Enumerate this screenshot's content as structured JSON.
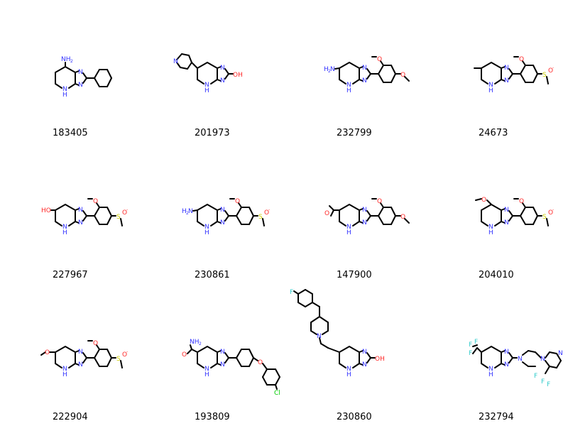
{
  "colors": {
    "bond": "#000000",
    "N": "#3333ff",
    "O": "#ff2a2a",
    "S": "#cccc00",
    "F": "#33cccc",
    "Cl": "#00cc00"
  },
  "compounds": [
    {
      "id": "183405",
      "icon": "molecule-structure",
      "atoms": {
        "nh2": "NH",
        "nh2_sub": "2",
        "n1": "N",
        "n2": "N",
        "nh": "N",
        "h": "H"
      }
    },
    {
      "id": "201973",
      "icon": "molecule-structure",
      "atoms": {
        "npy": "N",
        "n1": "N",
        "n2": "N",
        "nh": "N",
        "h": "H",
        "oh": "OH"
      }
    },
    {
      "id": "232799",
      "icon": "molecule-structure",
      "atoms": {
        "h2n": "H",
        "h2n_sub": "2",
        "h2n_n": "N",
        "n1": "N",
        "n2": "N",
        "nh": "N",
        "h": "H",
        "o1": "O",
        "o2": "O"
      }
    },
    {
      "id": "24673",
      "icon": "molecule-structure",
      "atoms": {
        "n1": "N",
        "n2": "N",
        "nh": "N",
        "h": "H",
        "o1": "O",
        "s": "S",
        "so": "O",
        "so_charge": "-"
      }
    },
    {
      "id": "227967",
      "icon": "molecule-structure",
      "atoms": {
        "ho": "HO",
        "n1": "N",
        "n2": "N",
        "nh": "N",
        "h": "H",
        "o1": "O",
        "s": "S",
        "so": "O",
        "so_charge": "-"
      }
    },
    {
      "id": "230861",
      "icon": "molecule-structure",
      "atoms": {
        "h2n": "H",
        "h2n_sub": "2",
        "h2n_n": "N",
        "n1": "N",
        "n2": "N",
        "nh": "N",
        "h": "H",
        "o1": "O",
        "s": "S",
        "so": "O",
        "so_charge": "-"
      }
    },
    {
      "id": "147900",
      "icon": "molecule-structure",
      "atoms": {
        "oket": "O",
        "n1": "N",
        "n2": "N",
        "nh": "N",
        "h": "H",
        "o1": "O",
        "o2": "O"
      }
    },
    {
      "id": "204010",
      "icon": "molecule-structure",
      "atoms": {
        "oome": "O",
        "n1": "N",
        "n2": "N",
        "nh": "N",
        "h": "H",
        "o1": "O",
        "s": "S",
        "so": "O",
        "so_charge": "-"
      }
    },
    {
      "id": "222904",
      "icon": "molecule-structure",
      "atoms": {
        "oome": "O",
        "n1": "N",
        "n2": "N",
        "nh": "N",
        "h": "H",
        "o1": "O",
        "s": "S",
        "so": "O",
        "so_charge": "-"
      }
    },
    {
      "id": "193809",
      "icon": "molecule-structure",
      "atoms": {
        "amide_nh2": "NH",
        "amide_sub": "2",
        "amide_o": "O",
        "n1": "N",
        "n2": "N",
        "nh": "N",
        "h": "H",
        "oeth": "O",
        "cl": "Cl"
      }
    },
    {
      "id": "230860",
      "icon": "molecule-structure",
      "atoms": {
        "f": "F",
        "npip": "N",
        "n1": "N",
        "n2": "N",
        "nh": "N",
        "h": "H",
        "oh": "OH"
      }
    },
    {
      "id": "232794",
      "icon": "molecule-structure",
      "atoms": {
        "f1": "F",
        "f2": "F",
        "f3": "F",
        "f4": "F",
        "f5": "F",
        "f6": "F",
        "n1": "N",
        "n2": "N",
        "nh": "N",
        "h": "H",
        "np1": "N",
        "np2": "N",
        "npy": "N"
      }
    }
  ]
}
